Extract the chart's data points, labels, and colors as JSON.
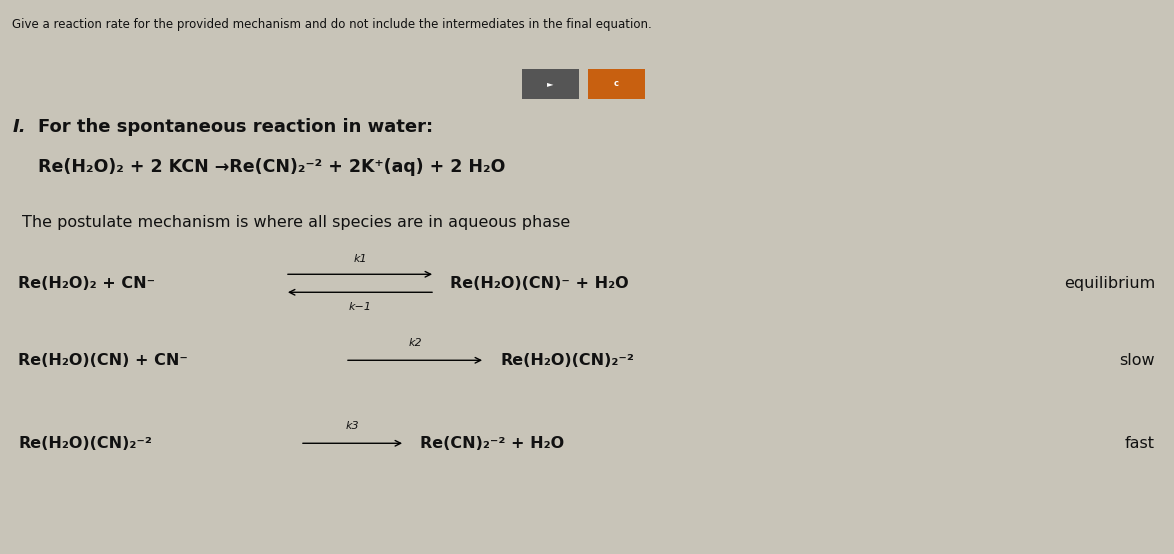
{
  "bg_color": "#c8c4b8",
  "header_bg": "#e8e6e0",
  "title_instruction": "Give a reaction rate for the provided mechanism and do not include the intermediates in the final equation.",
  "section_number": "I.",
  "section_title": "For the spontaneous reaction in water:",
  "overall_reaction": "Re(H₂O)₂ + 2 KCN →Re(CN)₂⁻² + 2K⁺(aq) + 2 H₂O",
  "postulate_text": "The postulate mechanism is where all species are in aqueous phase",
  "step1_left": "Re(H₂O)₂ + CN⁻",
  "step1_right": "Re(H₂O)(CN)⁻ + H₂O",
  "step1_label_top": "k1",
  "step1_label_bot": "k−1",
  "step1_type": "equilibrium",
  "step2_left": "Re(H₂O)(CN) + CN⁻",
  "step2_right": "Re(H₂O)(CN)₂⁻²",
  "step2_label": "k2",
  "step2_type": "slow",
  "step3_left": "Re(H₂O)(CN)₂⁻²",
  "step3_right": "Re(CN)₂⁻² + H₂O",
  "step3_label": "k3",
  "step3_type": "fast",
  "button1_color": "#555555",
  "button2_color": "#c86010",
  "text_color": "#111111",
  "border_color": "#888888",
  "fig_width": 11.74,
  "fig_height": 5.54,
  "dpi": 100
}
